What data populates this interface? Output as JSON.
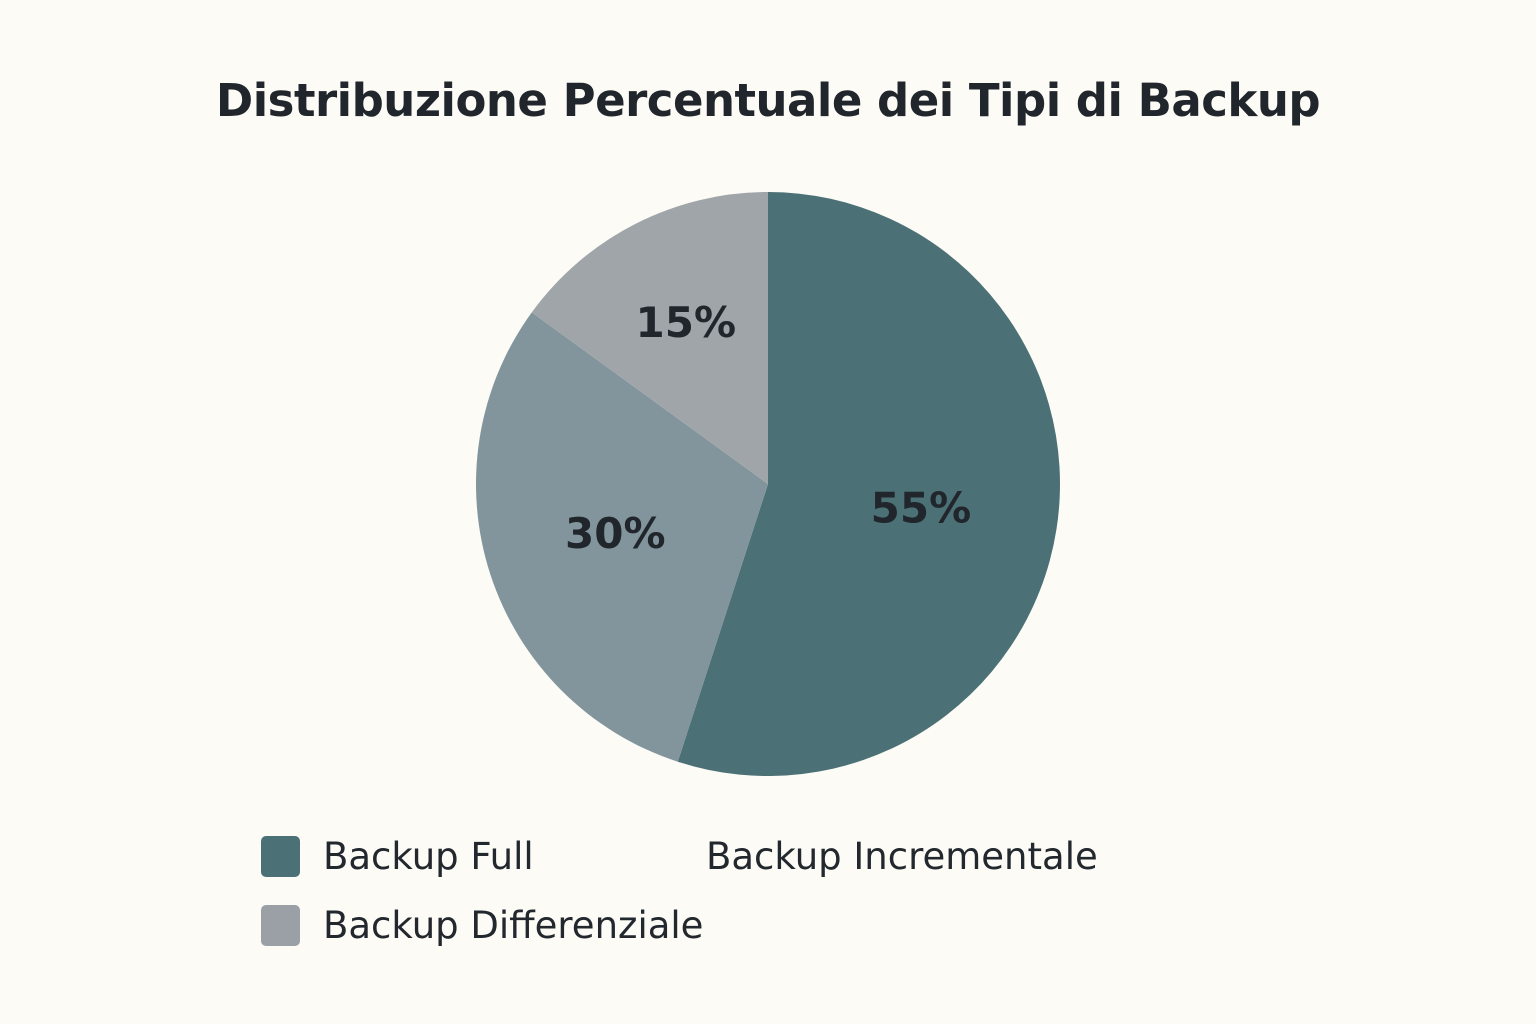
{
  "chart_data": {
    "type": "pie",
    "title": "Distribuzione Percentuale dei Tipi di Backup",
    "slices": [
      {
        "label": "Backup Full",
        "value": 55,
        "display": "55%",
        "color": "#4B7075"
      },
      {
        "label": "Backup Incrementale",
        "value": 30,
        "display": "30%",
        "color": "#82959C"
      },
      {
        "label": "Backup Differenziale",
        "value": 15,
        "display": "15%",
        "color": "#A0A5AA"
      }
    ],
    "legend": {
      "placement": "bottom",
      "entries": [
        {
          "label": "Backup Full",
          "color": "#4B7075",
          "swatch": true
        },
        {
          "label": "Backup Incrementale",
          "color": "#82959C",
          "swatch": false
        },
        {
          "label": "Backup Differenziale",
          "color": "#9AA0A5",
          "swatch": true
        }
      ]
    }
  }
}
